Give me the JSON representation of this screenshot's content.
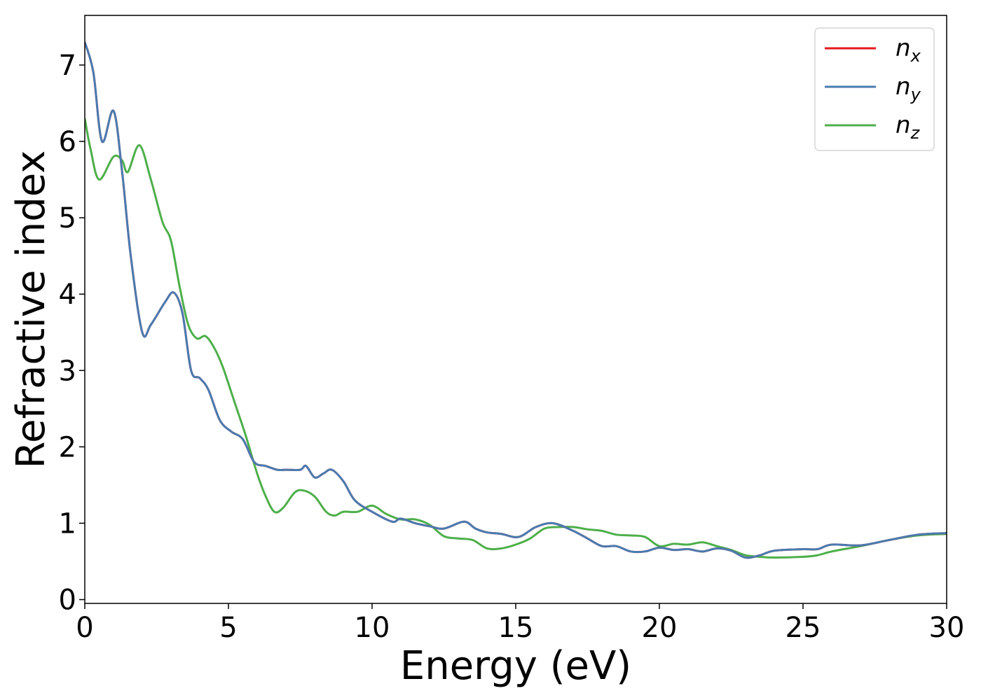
{
  "chart_data": {
    "type": "line",
    "xlabel": "Energy (eV)",
    "ylabel": "Refractive index",
    "xlim": [
      0,
      30
    ],
    "ylim": [
      -0.05,
      7.65
    ],
    "xticks": [
      0,
      5,
      10,
      15,
      20,
      25,
      30
    ],
    "yticks": [
      0,
      1,
      2,
      3,
      4,
      5,
      6,
      7
    ],
    "grid": false,
    "legend_position": "top-right",
    "series": [
      {
        "name": "n",
        "subscript": "x",
        "color": "#e41a1c",
        "x": [
          0,
          0.3,
          0.6,
          1.0,
          1.3,
          1.6,
          2.0,
          2.3,
          2.8,
          3.1,
          3.4,
          3.7,
          4.0,
          4.3,
          4.7,
          5.1,
          5.5,
          5.9,
          6.3,
          6.7,
          7.0,
          7.5,
          7.7,
          8.0,
          8.3,
          8.6,
          9.0,
          9.4,
          10.0,
          10.7,
          11.0,
          11.5,
          12.0,
          12.5,
          13.2,
          13.6,
          14.0,
          14.5,
          15.1,
          15.7,
          16.3,
          17.0,
          17.5,
          18.0,
          18.5,
          19.0,
          19.5,
          20.0,
          20.5,
          21.0,
          21.5,
          22.0,
          22.5,
          23.0,
          23.5,
          24.0,
          25.0,
          25.5,
          26.0,
          27.0,
          28.0,
          29.0,
          30.0
        ],
        "values": [
          7.3,
          6.9,
          6.0,
          6.4,
          5.6,
          4.5,
          3.5,
          3.6,
          3.9,
          4.02,
          3.75,
          3.0,
          2.9,
          2.75,
          2.35,
          2.2,
          2.1,
          1.8,
          1.75,
          1.7,
          1.7,
          1.7,
          1.75,
          1.6,
          1.65,
          1.7,
          1.55,
          1.3,
          1.15,
          1.02,
          1.06,
          1.0,
          0.96,
          0.93,
          1.02,
          0.93,
          0.88,
          0.86,
          0.82,
          0.95,
          1.0,
          0.9,
          0.8,
          0.7,
          0.7,
          0.63,
          0.63,
          0.68,
          0.65,
          0.66,
          0.63,
          0.67,
          0.64,
          0.55,
          0.58,
          0.64,
          0.66,
          0.66,
          0.72,
          0.71,
          0.78,
          0.85,
          0.87
        ]
      },
      {
        "name": "n",
        "subscript": "y",
        "color": "#4a7bb0",
        "x": [
          0,
          0.3,
          0.6,
          1.0,
          1.3,
          1.6,
          2.0,
          2.3,
          2.8,
          3.1,
          3.4,
          3.7,
          4.0,
          4.3,
          4.7,
          5.1,
          5.5,
          5.9,
          6.3,
          6.7,
          7.0,
          7.5,
          7.7,
          8.0,
          8.3,
          8.6,
          9.0,
          9.4,
          10.0,
          10.7,
          11.0,
          11.5,
          12.0,
          12.5,
          13.2,
          13.6,
          14.0,
          14.5,
          15.1,
          15.7,
          16.3,
          17.0,
          17.5,
          18.0,
          18.5,
          19.0,
          19.5,
          20.0,
          20.5,
          21.0,
          21.5,
          22.0,
          22.5,
          23.0,
          23.5,
          24.0,
          25.0,
          25.5,
          26.0,
          27.0,
          28.0,
          29.0,
          30.0
        ],
        "values": [
          7.3,
          6.9,
          6.0,
          6.4,
          5.6,
          4.5,
          3.5,
          3.6,
          3.9,
          4.02,
          3.75,
          3.0,
          2.9,
          2.75,
          2.35,
          2.2,
          2.1,
          1.8,
          1.75,
          1.7,
          1.7,
          1.7,
          1.75,
          1.6,
          1.65,
          1.7,
          1.55,
          1.3,
          1.15,
          1.02,
          1.06,
          1.0,
          0.96,
          0.93,
          1.02,
          0.93,
          0.88,
          0.86,
          0.82,
          0.95,
          1.0,
          0.9,
          0.8,
          0.7,
          0.7,
          0.63,
          0.63,
          0.68,
          0.65,
          0.66,
          0.63,
          0.67,
          0.64,
          0.55,
          0.58,
          0.64,
          0.66,
          0.66,
          0.72,
          0.71,
          0.78,
          0.85,
          0.87
        ]
      },
      {
        "name": "n",
        "subscript": "z",
        "color": "#4daf4a",
        "x": [
          0,
          0.2,
          0.5,
          1.0,
          1.3,
          1.5,
          1.9,
          2.3,
          2.7,
          3.0,
          3.3,
          3.6,
          3.9,
          4.2,
          4.5,
          4.8,
          5.2,
          5.6,
          6.0,
          6.3,
          6.6,
          6.9,
          7.3,
          7.6,
          8.0,
          8.4,
          8.7,
          9.0,
          9.5,
          10.0,
          10.5,
          11.0,
          11.5,
          12.0,
          12.5,
          13.0,
          13.5,
          14.0,
          14.5,
          15.0,
          15.5,
          16.0,
          16.5,
          17.0,
          17.5,
          18.0,
          18.5,
          19.0,
          19.5,
          20.0,
          20.5,
          21.0,
          21.5,
          22.0,
          22.5,
          23.0,
          23.5,
          24.0,
          25.0,
          25.5,
          26.0,
          27.0,
          28.0,
          29.0,
          30.0
        ],
        "values": [
          6.3,
          5.9,
          5.5,
          5.8,
          5.75,
          5.6,
          5.95,
          5.5,
          4.95,
          4.7,
          4.1,
          3.6,
          3.42,
          3.45,
          3.3,
          3.05,
          2.6,
          2.15,
          1.65,
          1.35,
          1.15,
          1.2,
          1.4,
          1.43,
          1.35,
          1.15,
          1.1,
          1.15,
          1.15,
          1.23,
          1.12,
          1.05,
          1.05,
          0.98,
          0.83,
          0.8,
          0.78,
          0.67,
          0.67,
          0.72,
          0.8,
          0.93,
          0.95,
          0.95,
          0.92,
          0.9,
          0.85,
          0.84,
          0.82,
          0.7,
          0.73,
          0.72,
          0.75,
          0.7,
          0.65,
          0.58,
          0.56,
          0.55,
          0.56,
          0.58,
          0.63,
          0.7,
          0.78,
          0.84,
          0.86
        ]
      }
    ]
  }
}
